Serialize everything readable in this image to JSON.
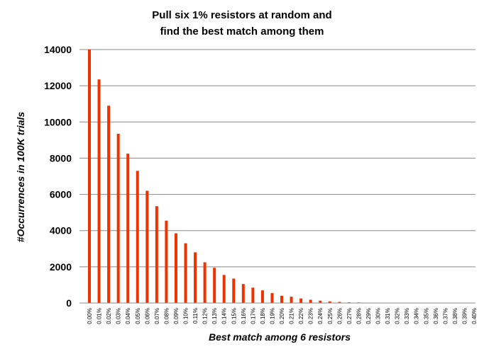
{
  "chart_data": {
    "type": "bar",
    "title_lines": [
      "Pull six 1% resistors at random and",
      "find the best match among them"
    ],
    "xlabel": "Best match among 6 resistors",
    "ylabel": "#Occurrences in 100K trials",
    "ylim": [
      0,
      14000
    ],
    "yticks": [
      "0",
      "2000",
      "4000",
      "6000",
      "8000",
      "10000",
      "12000",
      "14000"
    ],
    "grid": true,
    "legend": "none",
    "bar_color": "#ee3300",
    "categories": [
      "0.00%",
      "0.01%",
      "0.02%",
      "0.03%",
      "0.04%",
      "0.05%",
      "0.06%",
      "0.07%",
      "0.08%",
      "0.09%",
      "0.10%",
      "0.11%",
      "0.12%",
      "0.13%",
      "0.14%",
      "0.15%",
      "0.16%",
      "0.17%",
      "0.18%",
      "0.19%",
      "0.20%",
      "0.21%",
      "0.22%",
      "0.23%",
      "0.24%",
      "0.25%",
      "0.26%",
      "0.27%",
      "0.28%",
      "0.29%",
      "0.30%",
      "0.31%",
      "0.32%",
      "0.33%",
      "0.34%",
      "0.35%",
      "0.36%",
      "0.37%",
      "0.38%",
      "0.39%",
      "0.40%"
    ],
    "values": [
      14000,
      12350,
      10900,
      9350,
      8250,
      7300,
      6200,
      5350,
      4550,
      3850,
      3300,
      2800,
      2250,
      1950,
      1550,
      1350,
      1050,
      850,
      700,
      550,
      400,
      350,
      250,
      180,
      130,
      90,
      60,
      40,
      30,
      15,
      10,
      5,
      3,
      2,
      1,
      1,
      0,
      0,
      0,
      0,
      0
    ]
  }
}
